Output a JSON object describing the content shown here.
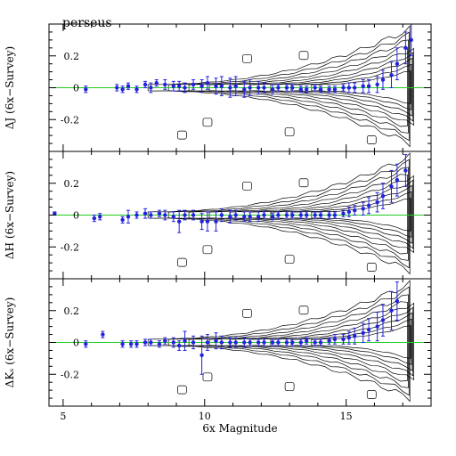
{
  "chart_data": [
    {
      "type": "scatter",
      "title": "perseus",
      "xlabel": "",
      "ylabel": "ΔJ (6x−Survey)",
      "xlim": [
        4.5,
        18.0
      ],
      "ylim": [
        -0.4,
        0.4
      ],
      "xticks": [
        5,
        10,
        15
      ],
      "yticks": [
        -0.2,
        0,
        0.2
      ],
      "reference_line": 0,
      "series": [
        {
          "x": [
            5.8,
            6.9,
            7.1,
            7.3,
            7.6,
            7.9,
            8.1,
            8.3,
            8.6,
            8.9,
            9.1,
            9.3,
            9.6,
            9.9,
            10.1,
            10.4,
            10.6,
            10.9,
            11.1,
            11.4,
            11.6,
            11.9,
            12.1,
            12.4,
            12.6,
            12.9,
            13.1,
            13.4,
            13.6,
            13.9,
            14.1,
            14.4,
            14.6,
            14.9,
            15.1,
            15.3,
            15.6,
            15.8,
            16.1,
            16.3,
            16.6,
            16.8,
            17.1,
            17.3
          ],
          "y": [
            -0.01,
            0.0,
            -0.01,
            0.01,
            -0.01,
            0.02,
            0.0,
            0.03,
            0.02,
            0.01,
            0.01,
            0.0,
            0.02,
            0.01,
            0.03,
            0.01,
            0.01,
            0.0,
            0.01,
            -0.01,
            0.0,
            0.0,
            0.0,
            -0.01,
            0.0,
            0.0,
            0.0,
            -0.01,
            -0.01,
            0.0,
            -0.01,
            -0.01,
            -0.01,
            0.0,
            0.0,
            0.0,
            0.01,
            0.01,
            0.02,
            0.05,
            0.08,
            0.15,
            0.25,
            0.3
          ],
          "err": [
            0.02,
            0.02,
            0.02,
            0.02,
            0.02,
            0.02,
            0.03,
            0.02,
            0.03,
            0.03,
            0.03,
            0.03,
            0.03,
            0.04,
            0.04,
            0.05,
            0.06,
            0.06,
            0.06,
            0.05,
            0.05,
            0.04,
            0.03,
            0.03,
            0.02,
            0.02,
            0.02,
            0.02,
            0.02,
            0.02,
            0.02,
            0.02,
            0.02,
            0.02,
            0.03,
            0.03,
            0.04,
            0.04,
            0.05,
            0.06,
            0.08,
            0.1,
            0.1,
            0.1
          ]
        }
      ]
    },
    {
      "type": "scatter",
      "title": "",
      "xlabel": "",
      "ylabel": "ΔH (6x−Survey)",
      "xlim": [
        4.5,
        18.0
      ],
      "ylim": [
        -0.4,
        0.4
      ],
      "xticks": [
        5,
        10,
        15
      ],
      "yticks": [
        -0.2,
        0,
        0.2
      ],
      "reference_line": 0,
      "series": [
        {
          "x": [
            4.7,
            6.1,
            6.3,
            7.1,
            7.3,
            7.6,
            7.9,
            8.1,
            8.4,
            8.6,
            8.9,
            9.1,
            9.3,
            9.6,
            9.9,
            10.1,
            10.4,
            10.6,
            10.9,
            11.1,
            11.4,
            11.6,
            11.9,
            12.1,
            12.4,
            12.6,
            12.9,
            13.1,
            13.4,
            13.6,
            13.9,
            14.1,
            14.4,
            14.6,
            14.9,
            15.1,
            15.3,
            15.6,
            15.8,
            16.1,
            16.3,
            16.6,
            16.8,
            17.1
          ],
          "y": [
            0.01,
            -0.02,
            -0.01,
            -0.03,
            -0.01,
            0.0,
            0.01,
            0.0,
            0.01,
            0.0,
            -0.01,
            -0.04,
            0.0,
            0.0,
            -0.04,
            -0.04,
            -0.04,
            0.0,
            -0.01,
            0.0,
            -0.01,
            -0.01,
            -0.01,
            0.0,
            -0.01,
            0.0,
            0.0,
            0.0,
            0.0,
            0.0,
            0.0,
            0.0,
            0.0,
            0.0,
            0.01,
            0.02,
            0.03,
            0.04,
            0.06,
            0.08,
            0.12,
            0.18,
            0.22,
            0.28
          ],
          "err": [
            0.01,
            0.02,
            0.02,
            0.02,
            0.04,
            0.02,
            0.03,
            0.02,
            0.02,
            0.03,
            0.03,
            0.07,
            0.03,
            0.03,
            0.05,
            0.06,
            0.06,
            0.04,
            0.04,
            0.03,
            0.03,
            0.03,
            0.03,
            0.02,
            0.02,
            0.02,
            0.02,
            0.02,
            0.02,
            0.02,
            0.02,
            0.02,
            0.02,
            0.02,
            0.02,
            0.03,
            0.03,
            0.04,
            0.05,
            0.06,
            0.08,
            0.1,
            0.1,
            0.1
          ]
        }
      ]
    },
    {
      "type": "scatter",
      "title": "",
      "xlabel": "6x Magnitude",
      "ylabel": "ΔKₛ (6x−Survey)",
      "xlim": [
        4.5,
        18.0
      ],
      "ylim": [
        -0.4,
        0.4
      ],
      "xticks": [
        5,
        10,
        15
      ],
      "yticks": [
        -0.2,
        0,
        0.2
      ],
      "reference_line": 0,
      "series": [
        {
          "x": [
            5.8,
            6.4,
            7.1,
            7.4,
            7.6,
            7.9,
            8.1,
            8.4,
            8.6,
            8.9,
            9.1,
            9.3,
            9.6,
            9.9,
            10.1,
            10.4,
            10.6,
            10.9,
            11.1,
            11.4,
            11.6,
            11.9,
            12.1,
            12.4,
            12.6,
            12.9,
            13.1,
            13.4,
            13.6,
            13.9,
            14.1,
            14.4,
            14.6,
            14.9,
            15.1,
            15.3,
            15.6,
            15.8,
            16.1,
            16.3,
            16.6,
            16.8
          ],
          "y": [
            -0.01,
            0.05,
            -0.01,
            -0.01,
            -0.01,
            0.0,
            0.0,
            -0.01,
            0.01,
            0.0,
            -0.02,
            0.01,
            0.0,
            -0.08,
            0.0,
            0.01,
            0.0,
            0.0,
            0.0,
            0.0,
            0.0,
            0.0,
            0.0,
            0.0,
            0.0,
            0.0,
            0.0,
            0.0,
            0.01,
            0.0,
            0.0,
            0.01,
            0.02,
            0.02,
            0.03,
            0.04,
            0.06,
            0.08,
            0.1,
            0.14,
            0.2,
            0.26
          ],
          "err": [
            0.02,
            0.02,
            0.02,
            0.02,
            0.02,
            0.02,
            0.02,
            0.02,
            0.02,
            0.03,
            0.03,
            0.06,
            0.04,
            0.12,
            0.05,
            0.05,
            0.04,
            0.03,
            0.03,
            0.03,
            0.02,
            0.02,
            0.02,
            0.02,
            0.02,
            0.02,
            0.02,
            0.02,
            0.02,
            0.02,
            0.02,
            0.02,
            0.03,
            0.03,
            0.04,
            0.05,
            0.06,
            0.07,
            0.09,
            0.1,
            0.12,
            0.12
          ]
        }
      ]
    }
  ],
  "colors": {
    "points": "#2222dd",
    "zero_line": "#22cc22",
    "contours": "#000000",
    "axes": "#000000"
  }
}
